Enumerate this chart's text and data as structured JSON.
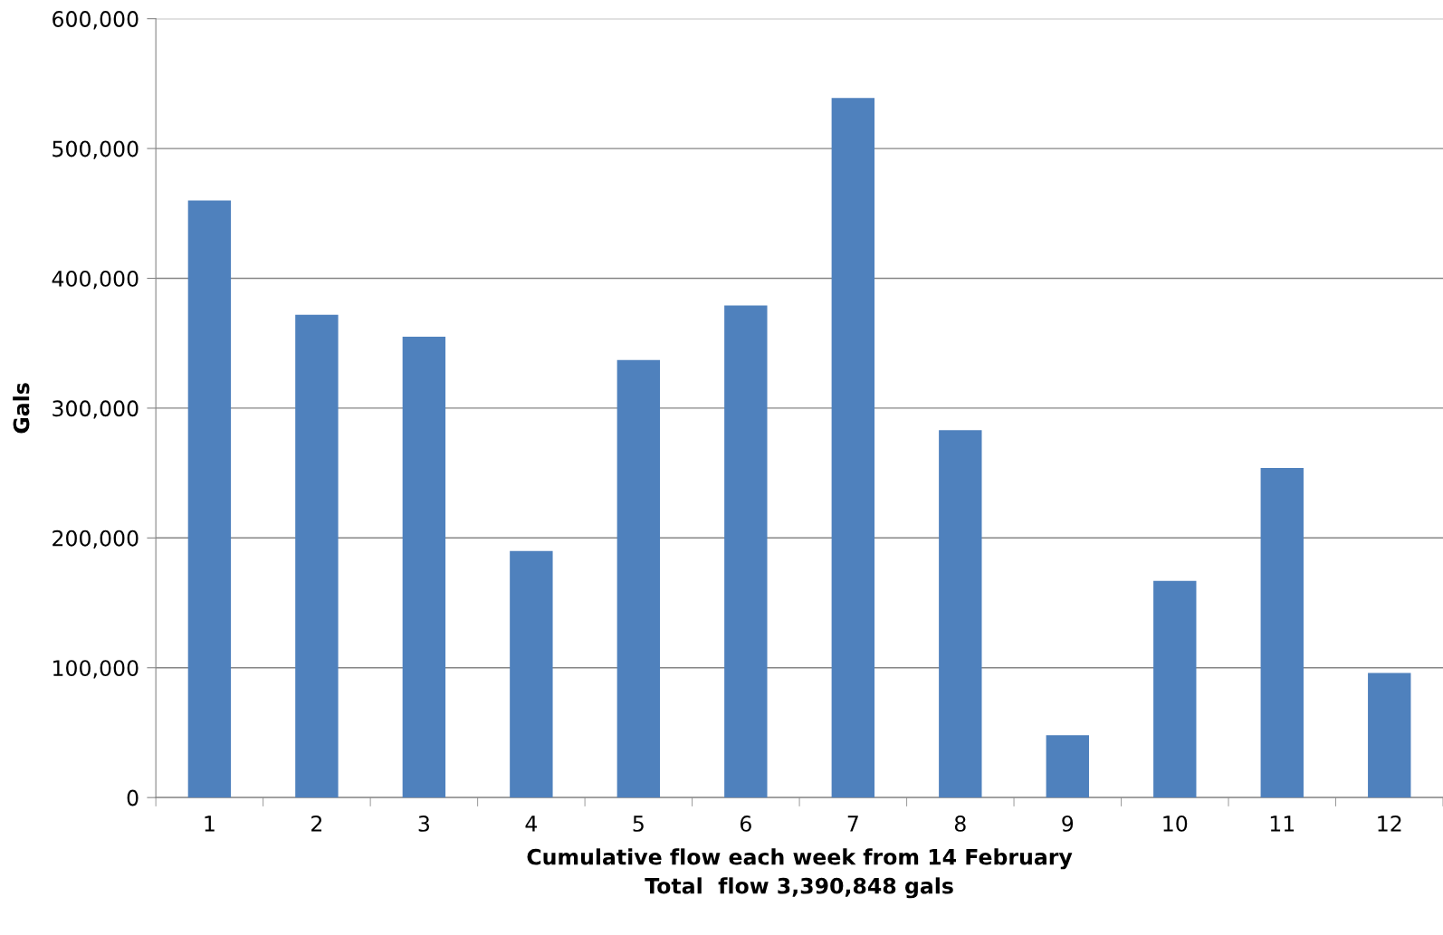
{
  "chart_data": {
    "type": "bar",
    "categories": [
      "1",
      "2",
      "3",
      "4",
      "5",
      "6",
      "7",
      "8",
      "9",
      "10",
      "11",
      "12"
    ],
    "values": [
      460000,
      372000,
      355000,
      190000,
      337000,
      379000,
      539000,
      283000,
      48000,
      167000,
      254000,
      96000
    ],
    "color": "#4f81bd",
    "xlabel": "Cumulative flow each week from 14 February\nTotal  flow 3,390,848 gals",
    "ylabel": "Gals",
    "ylim": [
      0,
      600000
    ],
    "yticks": [
      {
        "value": 0,
        "label": "0"
      },
      {
        "value": 100000,
        "label": "100,000"
      },
      {
        "value": 200000,
        "label": "200,000"
      },
      {
        "value": 300000,
        "label": "300,000"
      },
      {
        "value": 400000,
        "label": "400,000"
      },
      {
        "value": 500000,
        "label": "500,000"
      },
      {
        "value": 600000,
        "label": "600,000"
      }
    ],
    "grid": "y",
    "legend": false
  }
}
